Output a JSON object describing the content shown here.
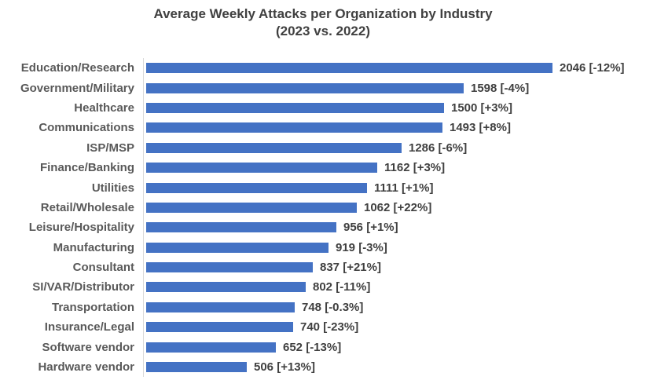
{
  "chart": {
    "title_line1": "Average Weekly Attacks per Organization by Industry",
    "title_line2": "(2023 vs. 2022)"
  },
  "chart_data": {
    "type": "bar",
    "orientation": "horizontal",
    "title": "Average Weekly Attacks per Organization by Industry (2023 vs. 2022)",
    "xlabel": "",
    "ylabel": "",
    "xlim": [
      0,
      2100
    ],
    "grid": false,
    "legend": false,
    "categories": [
      "Education/Research",
      "Government/Military",
      "Healthcare",
      "Communications",
      "ISP/MSP",
      "Finance/Banking",
      "Utilities",
      "Retail/Wholesale",
      "Leisure/Hospitality",
      "Manufacturing",
      "Consultant",
      "SI/VAR/Distributor",
      "Transportation",
      "Insurance/Legal",
      "Software vendor",
      "Hardware vendor"
    ],
    "values": [
      2046,
      1598,
      1500,
      1493,
      1286,
      1162,
      1111,
      1062,
      956,
      919,
      837,
      802,
      748,
      740,
      652,
      506
    ],
    "change_vs_2022": [
      "-12%",
      "-4%",
      "+3%",
      "+8%",
      "-6%",
      "+3%",
      "+1%",
      "+22%",
      "+1%",
      "-3%",
      "+21%",
      "-11%",
      "-0.3%",
      "-23%",
      "-13%",
      "+13%"
    ],
    "value_labels": [
      "2046 [-12%]",
      "1598 [-4%]",
      "1500 [+3%]",
      "1493 [+8%]",
      "1286 [-6%]",
      "1162 [+3%]",
      "1111 [+1%]",
      "1062 [+22%]",
      "956 [+1%]",
      "919 [-3%]",
      "837 [+21%]",
      "802 [-11%]",
      "748 [-0.3%]",
      "740 [-23%]",
      "652 [-13%]",
      "506 [+13%]"
    ]
  },
  "colors": {
    "bar": "#4472C4",
    "title_text": "#404040",
    "category_text": "#595959",
    "value_text": "#404040",
    "axis_line": "#d9d9d9",
    "background": "#ffffff"
  }
}
